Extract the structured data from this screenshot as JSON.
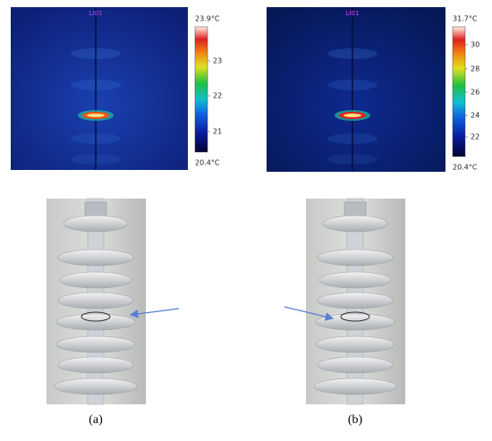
{
  "panels": [
    {
      "thermal": {
        "label": "LI01",
        "max": "23.9°C",
        "min": "20.4°C",
        "ticks": [
          "23",
          "22",
          "21"
        ]
      },
      "caption": "(a)"
    },
    {
      "thermal": {
        "label": "LI01",
        "max": "31.7°C",
        "min": "20.4°C",
        "ticks": [
          "30",
          "28",
          "26",
          "24",
          "22"
        ]
      },
      "caption": "(b)"
    }
  ]
}
